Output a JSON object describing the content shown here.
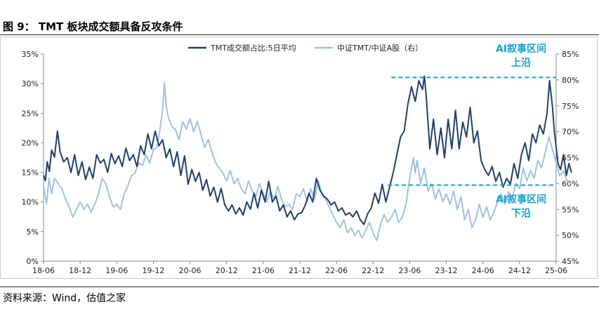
{
  "figure": {
    "title": "图 9： TMT 板块成交额具备反攻条件",
    "source": "资料来源：Wind，估值之家"
  },
  "chart_data": {
    "type": "line",
    "x_tick_labels": [
      "18-06",
      "18-12",
      "19-06",
      "19-12",
      "20-06",
      "20-12",
      "21-06",
      "21-12",
      "22-06",
      "22-12",
      "23-06",
      "23-12",
      "24-06",
      "24-12",
      "25-06"
    ],
    "left_axis": {
      "ylim": [
        0,
        35
      ],
      "ticks": [
        "0%",
        "5%",
        "10%",
        "15%",
        "20%",
        "25%",
        "30%",
        "35%"
      ]
    },
    "right_axis": {
      "ylim": [
        45,
        85
      ],
      "ticks": [
        "45%",
        "50%",
        "55%",
        "60%",
        "65%",
        "70%",
        "75%",
        "80%",
        "85%"
      ]
    },
    "series": [
      {
        "name": "TMT成交额占比:5日平均",
        "axis": "left",
        "color": "#1f3f6e",
        "unit": "%",
        "points": [
          [
            0,
            14.5
          ],
          [
            0.05,
            13.6
          ],
          [
            0.1,
            16.8
          ],
          [
            0.16,
            15.2
          ],
          [
            0.22,
            18.8
          ],
          [
            0.3,
            17.6
          ],
          [
            0.38,
            22.0
          ],
          [
            0.45,
            18.5
          ],
          [
            0.55,
            16.8
          ],
          [
            0.65,
            17.5
          ],
          [
            0.75,
            15.0
          ],
          [
            0.85,
            18.0
          ],
          [
            0.95,
            14.5
          ],
          [
            1.05,
            16.8
          ],
          [
            1.15,
            13.8
          ],
          [
            1.25,
            15.9
          ],
          [
            1.35,
            14.0
          ],
          [
            1.45,
            18.0
          ],
          [
            1.55,
            16.6
          ],
          [
            1.65,
            17.2
          ],
          [
            1.75,
            15.0
          ],
          [
            1.85,
            18.2
          ],
          [
            1.95,
            16.5
          ],
          [
            2.05,
            17.8
          ],
          [
            2.15,
            16.0
          ],
          [
            2.25,
            19.1
          ],
          [
            2.35,
            17.0
          ],
          [
            2.45,
            18.0
          ],
          [
            2.55,
            16.0
          ],
          [
            2.65,
            19.5
          ],
          [
            2.75,
            18.0
          ],
          [
            2.85,
            21.5
          ],
          [
            2.95,
            19.0
          ],
          [
            3.05,
            22.0
          ],
          [
            3.15,
            19.5
          ],
          [
            3.25,
            20.5
          ],
          [
            3.35,
            17.5
          ],
          [
            3.45,
            19.0
          ],
          [
            3.55,
            16.0
          ],
          [
            3.65,
            18.5
          ],
          [
            3.75,
            14.5
          ],
          [
            3.85,
            17.8
          ],
          [
            3.95,
            13.0
          ],
          [
            4.05,
            15.5
          ],
          [
            4.15,
            13.5
          ],
          [
            4.25,
            15.0
          ],
          [
            4.35,
            12.0
          ],
          [
            4.45,
            13.8
          ],
          [
            4.55,
            11.0
          ],
          [
            4.65,
            12.5
          ],
          [
            4.75,
            10.0
          ],
          [
            4.85,
            12.3
          ],
          [
            4.95,
            9.5
          ],
          [
            5.05,
            8.5
          ],
          [
            5.15,
            9.5
          ],
          [
            5.25,
            8.0
          ],
          [
            5.35,
            9.0
          ],
          [
            5.45,
            7.8
          ],
          [
            5.55,
            10.0
          ],
          [
            5.65,
            8.8
          ],
          [
            5.75,
            11.5
          ],
          [
            5.85,
            9.0
          ],
          [
            5.95,
            12.0
          ],
          [
            6.05,
            10.0
          ],
          [
            6.15,
            13.5
          ],
          [
            6.25,
            10.0
          ],
          [
            6.35,
            11.0
          ],
          [
            6.45,
            8.5
          ],
          [
            6.55,
            9.5
          ],
          [
            6.65,
            7.5
          ],
          [
            6.75,
            8.5
          ],
          [
            6.85,
            7.0
          ],
          [
            6.95,
            8.0
          ],
          [
            7.05,
            8.2
          ],
          [
            7.15,
            9.5
          ],
          [
            7.25,
            11.5
          ],
          [
            7.35,
            10.0
          ],
          [
            7.45,
            14.0
          ],
          [
            7.55,
            12.0
          ],
          [
            7.65,
            11.0
          ],
          [
            7.75,
            10.5
          ],
          [
            7.85,
            9.5
          ],
          [
            7.95,
            10.0
          ],
          [
            8.05,
            8.5
          ],
          [
            8.15,
            9.0
          ],
          [
            8.25,
            7.8
          ],
          [
            8.35,
            8.2
          ],
          [
            8.45,
            7.5
          ],
          [
            8.55,
            8.5
          ],
          [
            8.65,
            7.0
          ],
          [
            8.75,
            6.2
          ],
          [
            8.85,
            8.0
          ],
          [
            8.95,
            9.0
          ],
          [
            9.05,
            11.5
          ],
          [
            9.15,
            9.8
          ],
          [
            9.25,
            13.0
          ],
          [
            9.35,
            10.0
          ],
          [
            9.45,
            12.5
          ],
          [
            9.55,
            15.0
          ],
          [
            9.65,
            18.0
          ],
          [
            9.75,
            21.0
          ],
          [
            9.85,
            22.0
          ],
          [
            9.95,
            26.5
          ],
          [
            10.05,
            29.5
          ],
          [
            10.15,
            27.0
          ],
          [
            10.25,
            30.5
          ],
          [
            10.35,
            29.0
          ],
          [
            10.4,
            31.3
          ],
          [
            10.45,
            28.0
          ],
          [
            10.55,
            19.0
          ],
          [
            10.65,
            24.0
          ],
          [
            10.75,
            18.0
          ],
          [
            10.85,
            22.5
          ],
          [
            10.95,
            17.5
          ],
          [
            11.05,
            24.0
          ],
          [
            11.15,
            19.0
          ],
          [
            11.25,
            25.5
          ],
          [
            11.35,
            19.0
          ],
          [
            11.45,
            23.5
          ],
          [
            11.55,
            21.0
          ],
          [
            11.65,
            26.0
          ],
          [
            11.75,
            20.0
          ],
          [
            11.85,
            22.0
          ],
          [
            11.95,
            17.0
          ],
          [
            12.05,
            15.5
          ],
          [
            12.15,
            14.5
          ],
          [
            12.25,
            16.0
          ],
          [
            12.35,
            13.5
          ],
          [
            12.45,
            15.0
          ],
          [
            12.55,
            12.5
          ],
          [
            12.65,
            14.0
          ],
          [
            12.75,
            13.0
          ],
          [
            12.85,
            16.5
          ],
          [
            12.95,
            14.0
          ],
          [
            13.05,
            18.0
          ],
          [
            13.15,
            20.0
          ],
          [
            13.25,
            17.0
          ],
          [
            13.35,
            21.5
          ],
          [
            13.45,
            20.0
          ],
          [
            13.55,
            23.0
          ],
          [
            13.65,
            21.5
          ],
          [
            13.75,
            25.0
          ],
          [
            13.82,
            30.5
          ],
          [
            13.9,
            26.0
          ],
          [
            13.95,
            22.0
          ],
          [
            14.05,
            16.5
          ],
          [
            14.12,
            15.5
          ],
          [
            14.2,
            18.0
          ],
          [
            14.28,
            14.5
          ],
          [
            14.35,
            16.5
          ],
          [
            14.42,
            15.0
          ]
        ]
      },
      {
        "name": "中证TMT/中证A股（右）",
        "axis": "right",
        "color": "#9ec3e6",
        "unit": "%",
        "points": [
          [
            0,
            59.5
          ],
          [
            0.08,
            56.0
          ],
          [
            0.15,
            61.0
          ],
          [
            0.22,
            58.0
          ],
          [
            0.3,
            61.0
          ],
          [
            0.4,
            60.0
          ],
          [
            0.5,
            59.0
          ],
          [
            0.6,
            57.0
          ],
          [
            0.7,
            55.5
          ],
          [
            0.8,
            53.5
          ],
          [
            0.9,
            55.0
          ],
          [
            1.0,
            56.5
          ],
          [
            1.1,
            55.0
          ],
          [
            1.2,
            56.0
          ],
          [
            1.3,
            54.5
          ],
          [
            1.4,
            56.0
          ],
          [
            1.5,
            58.0
          ],
          [
            1.6,
            61.0
          ],
          [
            1.7,
            60.0
          ],
          [
            1.8,
            57.5
          ],
          [
            1.9,
            55.5
          ],
          [
            2.0,
            56.0
          ],
          [
            2.1,
            55.0
          ],
          [
            2.2,
            58.0
          ],
          [
            2.3,
            59.5
          ],
          [
            2.4,
            61.5
          ],
          [
            2.5,
            62.0
          ],
          [
            2.6,
            64.0
          ],
          [
            2.7,
            63.5
          ],
          [
            2.8,
            65.5
          ],
          [
            2.9,
            64.0
          ],
          [
            3.0,
            66.5
          ],
          [
            3.1,
            67.0
          ],
          [
            3.2,
            71.5
          ],
          [
            3.25,
            74.0
          ],
          [
            3.3,
            79.5
          ],
          [
            3.35,
            75.0
          ],
          [
            3.4,
            73.0
          ],
          [
            3.5,
            71.0
          ],
          [
            3.6,
            70.5
          ],
          [
            3.7,
            68.5
          ],
          [
            3.8,
            72.0
          ],
          [
            3.9,
            70.5
          ],
          [
            4.0,
            72.5
          ],
          [
            4.1,
            70.0
          ],
          [
            4.2,
            72.0
          ],
          [
            4.3,
            69.5
          ],
          [
            4.4,
            67.0
          ],
          [
            4.5,
            68.5
          ],
          [
            4.6,
            66.0
          ],
          [
            4.7,
            64.0
          ],
          [
            4.8,
            63.0
          ],
          [
            4.9,
            62.0
          ],
          [
            5.0,
            60.5
          ],
          [
            5.1,
            62.5
          ],
          [
            5.2,
            60.0
          ],
          [
            5.3,
            61.0
          ],
          [
            5.4,
            59.0
          ],
          [
            5.5,
            58.0
          ],
          [
            5.6,
            60.5
          ],
          [
            5.7,
            58.5
          ],
          [
            5.8,
            57.5
          ],
          [
            5.9,
            60.0
          ],
          [
            6.0,
            58.0
          ],
          [
            6.1,
            56.5
          ],
          [
            6.2,
            58.5
          ],
          [
            6.3,
            57.0
          ],
          [
            6.4,
            59.5
          ],
          [
            6.5,
            57.0
          ],
          [
            6.6,
            55.5
          ],
          [
            6.7,
            56.0
          ],
          [
            6.8,
            55.0
          ],
          [
            6.9,
            58.0
          ],
          [
            7.0,
            57.5
          ],
          [
            7.1,
            59.0
          ],
          [
            7.2,
            56.5
          ],
          [
            7.3,
            59.0
          ],
          [
            7.4,
            57.0
          ],
          [
            7.5,
            60.5
          ],
          [
            7.6,
            58.0
          ],
          [
            7.7,
            57.0
          ],
          [
            7.8,
            55.5
          ],
          [
            7.9,
            54.0
          ],
          [
            8.0,
            52.5
          ],
          [
            8.1,
            51.5
          ],
          [
            8.2,
            53.0
          ],
          [
            8.3,
            50.5
          ],
          [
            8.4,
            51.5
          ],
          [
            8.5,
            50.0
          ],
          [
            8.6,
            51.0
          ],
          [
            8.7,
            49.5
          ],
          [
            8.8,
            51.0
          ],
          [
            8.9,
            52.5
          ],
          [
            9.0,
            50.5
          ],
          [
            9.1,
            49.0
          ],
          [
            9.2,
            52.0
          ],
          [
            9.3,
            54.0
          ],
          [
            9.4,
            52.5
          ],
          [
            9.5,
            53.5
          ],
          [
            9.6,
            55.0
          ],
          [
            9.7,
            52.5
          ],
          [
            9.8,
            53.5
          ],
          [
            9.9,
            56.0
          ],
          [
            10.0,
            61.0
          ],
          [
            10.1,
            65.0
          ],
          [
            10.15,
            62.0
          ],
          [
            10.2,
            64.5
          ],
          [
            10.3,
            60.0
          ],
          [
            10.4,
            63.0
          ],
          [
            10.5,
            58.5
          ],
          [
            10.6,
            60.0
          ],
          [
            10.7,
            57.0
          ],
          [
            10.8,
            59.0
          ],
          [
            10.9,
            56.5
          ],
          [
            11.0,
            58.0
          ],
          [
            11.1,
            56.0
          ],
          [
            11.2,
            58.5
          ],
          [
            11.3,
            55.0
          ],
          [
            11.4,
            57.5
          ],
          [
            11.5,
            53.0
          ],
          [
            11.6,
            55.0
          ],
          [
            11.7,
            51.5
          ],
          [
            11.8,
            53.0
          ],
          [
            11.9,
            56.0
          ],
          [
            12.0,
            53.5
          ],
          [
            12.1,
            55.5
          ],
          [
            12.2,
            53.0
          ],
          [
            12.3,
            54.5
          ],
          [
            12.4,
            56.5
          ],
          [
            12.5,
            58.0
          ],
          [
            12.6,
            56.0
          ],
          [
            12.7,
            58.5
          ],
          [
            12.8,
            57.0
          ],
          [
            12.9,
            60.0
          ],
          [
            13.0,
            59.0
          ],
          [
            13.1,
            63.0
          ],
          [
            13.2,
            60.5
          ],
          [
            13.3,
            62.5
          ],
          [
            13.4,
            61.0
          ],
          [
            13.5,
            64.5
          ],
          [
            13.6,
            63.0
          ],
          [
            13.7,
            66.0
          ],
          [
            13.8,
            69.0
          ],
          [
            13.9,
            66.5
          ],
          [
            14.0,
            64.0
          ],
          [
            14.1,
            61.5
          ],
          [
            14.2,
            62.5
          ],
          [
            14.3,
            60.5
          ],
          [
            14.42,
            60.0
          ]
        ]
      }
    ],
    "annotations": [
      {
        "id": "upper",
        "label_line1": "AI叙事区间",
        "label_line2": "上沿",
        "y_right": 80.5,
        "x_start": 9.5
      },
      {
        "id": "lower",
        "label_line1": "AI叙事区间",
        "label_line2": "下沿",
        "y_right": 59.7,
        "x_start": 9.4
      }
    ],
    "annotation_color": "#12a3d8"
  }
}
